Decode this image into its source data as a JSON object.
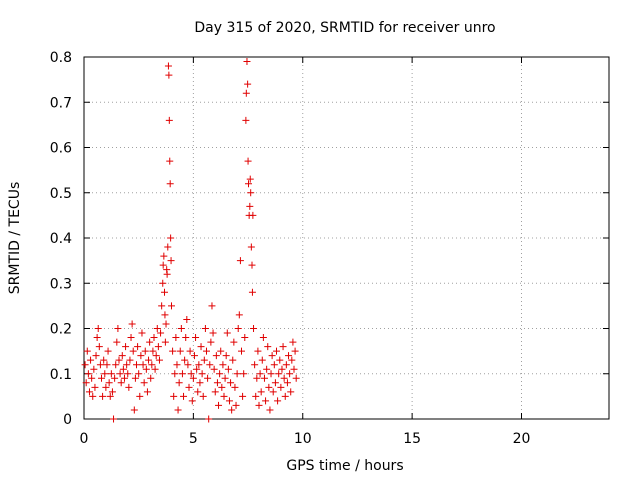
{
  "chart_data": {
    "type": "scatter",
    "title": "Day 315 of 2020, SRMTID for receiver unro",
    "xlabel": "GPS time / hours",
    "ylabel": "SRMTID / TECUs",
    "xlim": [
      0,
      24
    ],
    "ylim": [
      0,
      0.8
    ],
    "xticks": [
      0,
      5,
      10,
      15,
      20
    ],
    "xtick_labels": [
      "0",
      "5",
      "10",
      "15",
      "20"
    ],
    "yticks": [
      0,
      0.1,
      0.2,
      0.3,
      0.4,
      0.5,
      0.6,
      0.7,
      0.8
    ],
    "ytick_labels": [
      "0",
      "0.1",
      "0.2",
      "0.3",
      "0.4",
      "0.5",
      "0.6",
      "0.7",
      "0.8"
    ],
    "grid": true,
    "marker": "+",
    "color": "#e00000",
    "series": [
      {
        "name": "SRMTID",
        "points": [
          [
            0.05,
            0.12
          ],
          [
            0.1,
            0.08
          ],
          [
            0.15,
            0.15
          ],
          [
            0.2,
            0.1
          ],
          [
            0.25,
            0.06
          ],
          [
            0.3,
            0.13
          ],
          [
            0.35,
            0.09
          ],
          [
            0.4,
            0.05
          ],
          [
            0.45,
            0.11
          ],
          [
            0.5,
            0.07
          ],
          [
            0.55,
            0.14
          ],
          [
            0.6,
            0.18
          ],
          [
            0.65,
            0.2
          ],
          [
            0.7,
            0.16
          ],
          [
            0.75,
            0.12
          ],
          [
            0.8,
            0.09
          ],
          [
            0.85,
            0.05
          ],
          [
            0.9,
            0.13
          ],
          [
            0.95,
            0.1
          ],
          [
            1.0,
            0.07
          ],
          [
            1.05,
            0.12
          ],
          [
            1.1,
            0.15
          ],
          [
            1.15,
            0.08
          ],
          [
            1.2,
            0.05
          ],
          [
            1.25,
            0.1
          ],
          [
            1.3,
            0.06
          ],
          [
            1.35,
            0.0
          ],
          [
            1.4,
            0.09
          ],
          [
            1.45,
            0.12
          ],
          [
            1.5,
            0.17
          ],
          [
            1.55,
            0.2
          ],
          [
            1.6,
            0.13
          ],
          [
            1.65,
            0.1
          ],
          [
            1.7,
            0.08
          ],
          [
            1.75,
            0.14
          ],
          [
            1.8,
            0.11
          ],
          [
            1.85,
            0.09
          ],
          [
            1.9,
            0.16
          ],
          [
            1.95,
            0.12
          ],
          [
            2.0,
            0.1
          ],
          [
            2.05,
            0.07
          ],
          [
            2.1,
            0.13
          ],
          [
            2.15,
            0.18
          ],
          [
            2.2,
            0.21
          ],
          [
            2.25,
            0.15
          ],
          [
            2.3,
            0.02
          ],
          [
            2.35,
            0.09
          ],
          [
            2.4,
            0.12
          ],
          [
            2.45,
            0.16
          ],
          [
            2.5,
            0.1
          ],
          [
            2.55,
            0.05
          ],
          [
            2.6,
            0.14
          ],
          [
            2.65,
            0.19
          ],
          [
            2.7,
            0.12
          ],
          [
            2.75,
            0.08
          ],
          [
            2.8,
            0.15
          ],
          [
            2.85,
            0.11
          ],
          [
            2.9,
            0.06
          ],
          [
            2.95,
            0.13
          ],
          [
            3.0,
            0.17
          ],
          [
            3.05,
            0.09
          ],
          [
            3.1,
            0.12
          ],
          [
            3.15,
            0.15
          ],
          [
            3.2,
            0.18
          ],
          [
            3.25,
            0.11
          ],
          [
            3.3,
            0.14
          ],
          [
            3.35,
            0.2
          ],
          [
            3.4,
            0.16
          ],
          [
            3.45,
            0.13
          ],
          [
            3.5,
            0.19
          ],
          [
            3.55,
            0.25
          ],
          [
            3.6,
            0.3
          ],
          [
            3.62,
            0.34
          ],
          [
            3.65,
            0.36
          ],
          [
            3.68,
            0.28
          ],
          [
            3.7,
            0.23
          ],
          [
            3.72,
            0.17
          ],
          [
            3.75,
            0.21
          ],
          [
            3.78,
            0.33
          ],
          [
            3.8,
            0.32
          ],
          [
            3.83,
            0.38
          ],
          [
            3.86,
            0.78
          ],
          [
            3.88,
            0.76
          ],
          [
            3.9,
            0.66
          ],
          [
            3.92,
            0.57
          ],
          [
            3.94,
            0.52
          ],
          [
            3.96,
            0.4
          ],
          [
            3.98,
            0.35
          ],
          [
            4.0,
            0.25
          ],
          [
            4.05,
            0.15
          ],
          [
            4.1,
            0.05
          ],
          [
            4.15,
            0.1
          ],
          [
            4.2,
            0.18
          ],
          [
            4.25,
            0.12
          ],
          [
            4.3,
            0.02
          ],
          [
            4.35,
            0.08
          ],
          [
            4.4,
            0.15
          ],
          [
            4.45,
            0.2
          ],
          [
            4.5,
            0.1
          ],
          [
            4.55,
            0.05
          ],
          [
            4.6,
            0.13
          ],
          [
            4.65,
            0.18
          ],
          [
            4.7,
            0.22
          ],
          [
            4.75,
            0.12
          ],
          [
            4.8,
            0.07
          ],
          [
            4.85,
            0.15
          ],
          [
            4.9,
            0.1
          ],
          [
            4.95,
            0.04
          ],
          [
            5.0,
            0.09
          ],
          [
            5.05,
            0.14
          ],
          [
            5.1,
            0.18
          ],
          [
            5.15,
            0.11
          ],
          [
            5.2,
            0.06
          ],
          [
            5.25,
            0.12
          ],
          [
            5.3,
            0.08
          ],
          [
            5.35,
            0.16
          ],
          [
            5.4,
            0.1
          ],
          [
            5.45,
            0.05
          ],
          [
            5.5,
            0.13
          ],
          [
            5.55,
            0.2
          ],
          [
            5.6,
            0.15
          ],
          [
            5.65,
            0.09
          ],
          [
            5.7,
            0.0
          ],
          [
            5.75,
            0.12
          ],
          [
            5.8,
            0.17
          ],
          [
            5.85,
            0.25
          ],
          [
            5.9,
            0.19
          ],
          [
            5.95,
            0.11
          ],
          [
            6.0,
            0.06
          ],
          [
            6.05,
            0.14
          ],
          [
            6.1,
            0.08
          ],
          [
            6.15,
            0.03
          ],
          [
            6.2,
            0.1
          ],
          [
            6.25,
            0.15
          ],
          [
            6.3,
            0.07
          ],
          [
            6.35,
            0.12
          ],
          [
            6.4,
            0.05
          ],
          [
            6.45,
            0.09
          ],
          [
            6.5,
            0.14
          ],
          [
            6.55,
            0.19
          ],
          [
            6.6,
            0.11
          ],
          [
            6.65,
            0.04
          ],
          [
            6.7,
            0.08
          ],
          [
            6.75,
            0.02
          ],
          [
            6.8,
            0.13
          ],
          [
            6.85,
            0.17
          ],
          [
            6.9,
            0.07
          ],
          [
            6.95,
            0.03
          ],
          [
            7.0,
            0.1
          ],
          [
            7.05,
            0.2
          ],
          [
            7.1,
            0.23
          ],
          [
            7.15,
            0.35
          ],
          [
            7.2,
            0.15
          ],
          [
            7.25,
            0.05
          ],
          [
            7.3,
            0.1
          ],
          [
            7.35,
            0.18
          ],
          [
            7.4,
            0.66
          ],
          [
            7.42,
            0.72
          ],
          [
            7.45,
            0.79
          ],
          [
            7.48,
            0.74
          ],
          [
            7.5,
            0.57
          ],
          [
            7.52,
            0.52
          ],
          [
            7.55,
            0.45
          ],
          [
            7.58,
            0.47
          ],
          [
            7.6,
            0.53
          ],
          [
            7.62,
            0.5
          ],
          [
            7.65,
            0.38
          ],
          [
            7.68,
            0.34
          ],
          [
            7.7,
            0.28
          ],
          [
            7.72,
            0.45
          ],
          [
            7.75,
            0.2
          ],
          [
            7.8,
            0.12
          ],
          [
            7.85,
            0.05
          ],
          [
            7.9,
            0.09
          ],
          [
            7.95,
            0.15
          ],
          [
            8.0,
            0.03
          ],
          [
            8.05,
            0.1
          ],
          [
            8.1,
            0.06
          ],
          [
            8.15,
            0.13
          ],
          [
            8.2,
            0.18
          ],
          [
            8.25,
            0.09
          ],
          [
            8.3,
            0.04
          ],
          [
            8.35,
            0.11
          ],
          [
            8.4,
            0.16
          ],
          [
            8.45,
            0.07
          ],
          [
            8.5,
            0.02
          ],
          [
            8.55,
            0.1
          ],
          [
            8.6,
            0.14
          ],
          [
            8.65,
            0.06
          ],
          [
            8.7,
            0.12
          ],
          [
            8.75,
            0.08
          ],
          [
            8.8,
            0.15
          ],
          [
            8.85,
            0.04
          ],
          [
            8.9,
            0.1
          ],
          [
            8.95,
            0.13
          ],
          [
            9.0,
            0.07
          ],
          [
            9.05,
            0.11
          ],
          [
            9.1,
            0.16
          ],
          [
            9.15,
            0.09
          ],
          [
            9.2,
            0.05
          ],
          [
            9.25,
            0.12
          ],
          [
            9.3,
            0.08
          ],
          [
            9.35,
            0.14
          ],
          [
            9.4,
            0.1
          ],
          [
            9.45,
            0.06
          ],
          [
            9.5,
            0.13
          ],
          [
            9.55,
            0.17
          ],
          [
            9.6,
            0.11
          ],
          [
            9.65,
            0.15
          ],
          [
            9.7,
            0.09
          ]
        ]
      }
    ]
  }
}
